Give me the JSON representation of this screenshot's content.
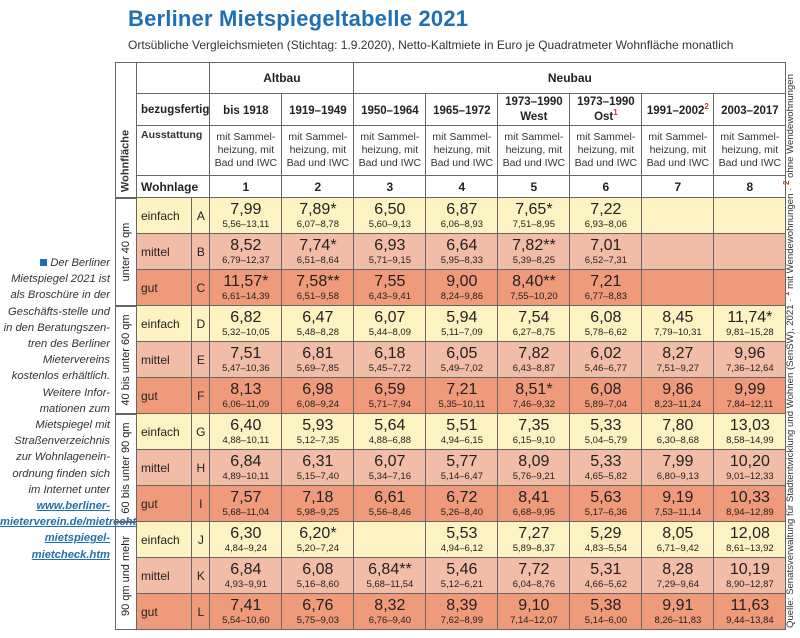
{
  "title": "Berliner Mietspiegeltabelle 2021",
  "subtitle": "Ortsübliche Vergleichsmieten (Stichtag: 1.9.2020), Netto-Kaltmiete in Euro je Quadratmeter Wohnfläche monatlich",
  "sidebar": {
    "text": "Der Berliner Mietspiegel 2021 ist als Broschüre in der Geschäfts-stelle und in den Beratungszen-tren des Berliner Mietervereins kostenlos erhältlich. Weitere Infor-mationen zum Mietspiegel mit Straßenverzeichnis zur Wohnlagenein-ordnung finden sich im Internet unter",
    "link": "www.berliner-mieterverein.de/mietrecht/berliner-mietspiegel-mietcheck.htm"
  },
  "source": {
    "text": "Quelle: Senatsverwaltung für Stadtentwicklung und Wohnen (SenSW), 2021 · ",
    "fn1": "1",
    "fn1_text": " mit Wendewohnungen · ",
    "fn2": "2",
    "fn2_text": " ohne Wendewohnungen"
  },
  "header": {
    "altbau": "Altbau",
    "neubau": "Neubau",
    "bezugsfertig": "bezugsfertig",
    "ausstattung": "Ausstattung",
    "wohnlage": "Wohnlage",
    "wohnflaeche": "Wohnfläche",
    "periods": [
      {
        "l": "bis 1918",
        "s": ""
      },
      {
        "l": "1919–1949",
        "s": ""
      },
      {
        "l": "1950–1964",
        "s": ""
      },
      {
        "l": "1965–1972",
        "s": ""
      },
      {
        "l": "1973–1990 West",
        "s": ""
      },
      {
        "l": "1973–1990 Ost",
        "s": "1"
      },
      {
        "l": "1991–2002",
        "s": "2"
      },
      {
        "l": "2003–2017",
        "s": ""
      }
    ],
    "ausstattung_text": "mit Sammel-heizung, mit Bad und IWC",
    "numbers": [
      "1",
      "2",
      "3",
      "4",
      "5",
      "6",
      "7",
      "8"
    ]
  },
  "groups": [
    {
      "label": "unter 40 qm",
      "rows": [
        {
          "lage": "einfach",
          "key": "A",
          "cells": [
            [
              "7,99",
              "5,56–13,11"
            ],
            [
              "7,89*",
              "6,07–8,78"
            ],
            [
              "6,50",
              "5,60–9,13"
            ],
            [
              "6,87",
              "6,06–8,93"
            ],
            [
              "7,65*",
              "7,51–8,95"
            ],
            [
              "7,22",
              "6,93–8,06"
            ],
            [
              "",
              ""
            ],
            [
              "",
              ""
            ]
          ]
        },
        {
          "lage": "mittel",
          "key": "B",
          "cells": [
            [
              "8,52",
              "6,79–12,37"
            ],
            [
              "7,74*",
              "6,51–8,64"
            ],
            [
              "6,93",
              "5,71–9,15"
            ],
            [
              "6,64",
              "5,95–8,33"
            ],
            [
              "7,82**",
              "5,39–8,25"
            ],
            [
              "7,01",
              "6,52–7,31"
            ],
            [
              "",
              ""
            ],
            [
              "",
              ""
            ]
          ]
        },
        {
          "lage": "gut",
          "key": "C",
          "cells": [
            [
              "11,57*",
              "6,61–14,39"
            ],
            [
              "7,58**",
              "6,51–9,58"
            ],
            [
              "7,55",
              "6,43–9,41"
            ],
            [
              "9,00",
              "8,24–9,86"
            ],
            [
              "8,40**",
              "7,55–10,20"
            ],
            [
              "7,21",
              "6,77–8,83"
            ],
            [
              "",
              ""
            ],
            [
              "",
              ""
            ]
          ]
        }
      ]
    },
    {
      "label": "40 bis unter 60 qm",
      "rows": [
        {
          "lage": "einfach",
          "key": "D",
          "cells": [
            [
              "6,82",
              "5,32–10,05"
            ],
            [
              "6,47",
              "5,48–8,28"
            ],
            [
              "6,07",
              "5,44–8,09"
            ],
            [
              "5,94",
              "5,11–7,09"
            ],
            [
              "7,54",
              "6,27–8,75"
            ],
            [
              "6,08",
              "5,78–6,62"
            ],
            [
              "8,45",
              "7,79–10,31"
            ],
            [
              "11,74*",
              "9,81–15,28"
            ]
          ]
        },
        {
          "lage": "mittel",
          "key": "E",
          "cells": [
            [
              "7,51",
              "5,47–10,36"
            ],
            [
              "6,81",
              "5,69–7,85"
            ],
            [
              "6,18",
              "5,45–7,72"
            ],
            [
              "6,05",
              "5,49–7,02"
            ],
            [
              "7,82",
              "6,43–8,87"
            ],
            [
              "6,02",
              "5,46–6,77"
            ],
            [
              "8,27",
              "7,51–9,27"
            ],
            [
              "9,96",
              "7,36–12,64"
            ]
          ]
        },
        {
          "lage": "gut",
          "key": "F",
          "cells": [
            [
              "8,13",
              "6,06–11,09"
            ],
            [
              "6,98",
              "6,08–9,24"
            ],
            [
              "6,59",
              "5,71–7,94"
            ],
            [
              "7,21",
              "5,35–10,11"
            ],
            [
              "8,51*",
              "7,46–9,32"
            ],
            [
              "6,08",
              "5,89–7,04"
            ],
            [
              "9,86",
              "8,23–11,24"
            ],
            [
              "9,99",
              "7,84–12,11"
            ]
          ]
        }
      ]
    },
    {
      "label": "60 bis unter 90 qm",
      "rows": [
        {
          "lage": "einfach",
          "key": "G",
          "cells": [
            [
              "6,40",
              "4,88–10,11"
            ],
            [
              "5,93",
              "5,12–7,35"
            ],
            [
              "5,64",
              "4,88–6,88"
            ],
            [
              "5,51",
              "4,94–6,15"
            ],
            [
              "7,35",
              "6,15–9,10"
            ],
            [
              "5,33",
              "5,04–5,79"
            ],
            [
              "7,80",
              "6,30–8,68"
            ],
            [
              "13,03",
              "8,58–14,99"
            ]
          ]
        },
        {
          "lage": "mittel",
          "key": "H",
          "cells": [
            [
              "6,84",
              "4,89–10,11"
            ],
            [
              "6,31",
              "5,15–7,40"
            ],
            [
              "6,07",
              "5,34–7,16"
            ],
            [
              "5,77",
              "5,14–6,47"
            ],
            [
              "8,09",
              "5,76–9,21"
            ],
            [
              "5,33",
              "4,65–5,82"
            ],
            [
              "7,99",
              "6,80–9,13"
            ],
            [
              "10,20",
              "9,01–12,33"
            ]
          ]
        },
        {
          "lage": "gut",
          "key": "I",
          "cells": [
            [
              "7,57",
              "5,68–11,04"
            ],
            [
              "7,18",
              "5,98–9,25"
            ],
            [
              "6,61",
              "5,56–8,46"
            ],
            [
              "6,72",
              "5,26–8,40"
            ],
            [
              "8,41",
              "6,68–9,95"
            ],
            [
              "5,63",
              "5,17–6,36"
            ],
            [
              "9,19",
              "7,53–11,14"
            ],
            [
              "10,33",
              "8,94–12,89"
            ]
          ]
        }
      ]
    },
    {
      "label": "90 qm und mehr",
      "rows": [
        {
          "lage": "einfach",
          "key": "J",
          "cells": [
            [
              "6,30",
              "4,84–9,24"
            ],
            [
              "6,20*",
              "5,20–7,24"
            ],
            [
              "",
              ""
            ],
            [
              "5,53",
              "4,94–6,12"
            ],
            [
              "7,27",
              "5,89–8,37"
            ],
            [
              "5,29",
              "4,83–5,54"
            ],
            [
              "8,05",
              "6,71–9,42"
            ],
            [
              "12,08",
              "8,61–13,92"
            ]
          ]
        },
        {
          "lage": "mittel",
          "key": "K",
          "cells": [
            [
              "6,84",
              "4,93–9,91"
            ],
            [
              "6,08",
              "5,16–8,60"
            ],
            [
              "6,84**",
              "5,68–11,54"
            ],
            [
              "5,46",
              "5,12–6,21"
            ],
            [
              "7,72",
              "6,04–8,76"
            ],
            [
              "5,31",
              "4,66–5,62"
            ],
            [
              "8,28",
              "7,29–9,64"
            ],
            [
              "10,19",
              "8,90–12,87"
            ]
          ]
        },
        {
          "lage": "gut",
          "key": "L",
          "cells": [
            [
              "7,41",
              "5,54–10,60"
            ],
            [
              "6,76",
              "5,75–9,03"
            ],
            [
              "8,32",
              "6,76–9,40"
            ],
            [
              "8,39",
              "7,62–8,99"
            ],
            [
              "9,10",
              "7,14–12,07"
            ],
            [
              "5,38",
              "5,14–6,00"
            ],
            [
              "9,91",
              "8,26–11,83"
            ],
            [
              "11,63",
              "9,44–13,84"
            ]
          ]
        }
      ]
    }
  ]
}
